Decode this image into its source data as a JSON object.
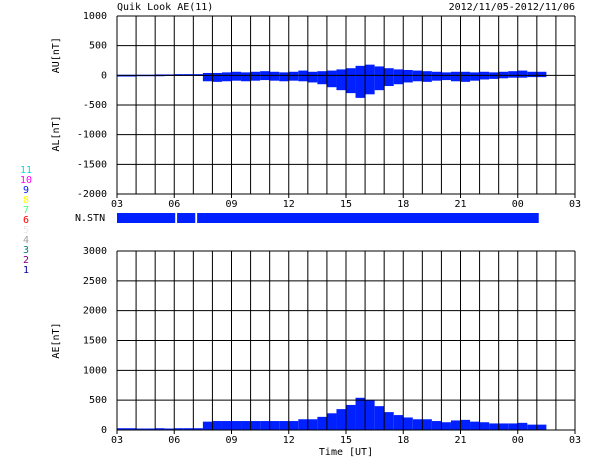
{
  "header": {
    "title": "Quik Look AE(11)",
    "date_range": "2012/11/05-2012/11/06"
  },
  "chart_data": [
    {
      "type": "area",
      "ylabels": [
        "AU[nT]",
        "AL[nT]"
      ],
      "xlim": [
        3,
        27
      ],
      "ylim": [
        -2000,
        1000
      ],
      "xticks": [
        {
          "value": 3,
          "label": "03"
        },
        {
          "value": 6,
          "label": "06"
        },
        {
          "value": 9,
          "label": "09"
        },
        12,
        15,
        18,
        21,
        {
          "value": 24,
          "label": "00"
        },
        {
          "value": 27,
          "label": "03"
        }
      ],
      "yticks": [
        1000,
        500,
        0,
        -500,
        -1000,
        -1500,
        -2000
      ],
      "xgrid": [
        3,
        4,
        5,
        6,
        7,
        8,
        9,
        10,
        11,
        12,
        13,
        14,
        15,
        16,
        17,
        18,
        19,
        20,
        21,
        22,
        23,
        24,
        25,
        26,
        27
      ],
      "x": [
        3,
        3.5,
        4,
        4.5,
        5,
        5.5,
        6,
        6.5,
        7,
        7.5,
        8,
        8.5,
        9,
        9.5,
        10,
        10.5,
        11,
        11.5,
        12,
        12.5,
        13,
        13.5,
        14,
        14.5,
        15,
        15.5,
        16,
        16.5,
        17,
        17.5,
        18,
        18.5,
        19,
        19.5,
        20,
        20.5,
        21,
        21.5,
        22,
        22.5,
        23,
        23.5,
        24,
        24.5,
        25
      ],
      "series": [
        {
          "color": "#0020ff",
          "values": [
            10,
            10,
            10,
            10,
            15,
            15,
            20,
            20,
            20,
            40,
            40,
            50,
            60,
            50,
            60,
            70,
            60,
            50,
            60,
            80,
            60,
            70,
            80,
            100,
            120,
            160,
            180,
            150,
            120,
            100,
            90,
            80,
            70,
            60,
            50,
            60,
            60,
            50,
            60,
            50,
            60,
            70,
            80,
            60,
            60
          ]
        },
        {
          "color": "#0020ff",
          "values": [
            -20,
            -20,
            -15,
            -15,
            -15,
            -10,
            -10,
            -10,
            -10,
            -100,
            -110,
            -100,
            -90,
            -100,
            -90,
            -80,
            -90,
            -100,
            -90,
            -100,
            -120,
            -150,
            -200,
            -250,
            -300,
            -380,
            -320,
            -250,
            -180,
            -150,
            -120,
            -100,
            -110,
            -90,
            -80,
            -100,
            -110,
            -90,
            -70,
            -60,
            -50,
            -40,
            -40,
            -30,
            -30
          ]
        }
      ]
    },
    {
      "type": "area",
      "ylabels": [
        "AE[nT]"
      ],
      "xlabel": "Time [UT]",
      "xlim": [
        3,
        27
      ],
      "ylim": [
        0,
        3000
      ],
      "xticks": [
        {
          "value": 3,
          "label": "03"
        },
        {
          "value": 6,
          "label": "06"
        },
        {
          "value": 9,
          "label": "09"
        },
        12,
        15,
        18,
        21,
        {
          "value": 24,
          "label": "00"
        },
        {
          "value": 27,
          "label": "03"
        }
      ],
      "yticks": [
        3000,
        2500,
        2000,
        1500,
        1000,
        500,
        0
      ],
      "xgrid": [
        3,
        4,
        5,
        6,
        7,
        8,
        9,
        10,
        11,
        12,
        13,
        14,
        15,
        16,
        17,
        18,
        19,
        20,
        21,
        22,
        23,
        24,
        25,
        26,
        27
      ],
      "x": [
        3,
        3.5,
        4,
        4.5,
        5,
        5.5,
        6,
        6.5,
        7,
        7.5,
        8,
        8.5,
        9,
        9.5,
        10,
        10.5,
        11,
        11.5,
        12,
        12.5,
        13,
        13.5,
        14,
        14.5,
        15,
        15.5,
        16,
        16.5,
        17,
        17.5,
        18,
        18.5,
        19,
        19.5,
        20,
        20.5,
        21,
        21.5,
        22,
        22.5,
        23,
        23.5,
        24,
        24.5,
        25
      ],
      "series": [
        {
          "color": "#0020ff",
          "values": [
            30,
            30,
            25,
            25,
            30,
            25,
            30,
            30,
            30,
            140,
            150,
            150,
            150,
            150,
            150,
            150,
            150,
            150,
            150,
            180,
            180,
            220,
            280,
            350,
            420,
            540,
            500,
            400,
            300,
            250,
            210,
            180,
            180,
            150,
            130,
            160,
            170,
            140,
            130,
            110,
            110,
            110,
            120,
            90,
            90
          ]
        }
      ]
    }
  ],
  "nstn": {
    "label": "N.STN",
    "segments": [
      {
        "start": 3,
        "end": 6.05,
        "value": 9
      },
      {
        "start": 6.15,
        "end": 7.1,
        "value": 9
      },
      {
        "start": 7.2,
        "end": 25.1,
        "value": 9
      }
    ]
  },
  "station_legend": [
    {
      "value": 11,
      "color": "#00e0e0"
    },
    {
      "value": 10,
      "color": "#ff00ff"
    },
    {
      "value": 9,
      "color": "#0020ff"
    },
    {
      "value": 8,
      "color": "#ffff00"
    },
    {
      "value": 7,
      "color": "#40ff80"
    },
    {
      "value": 6,
      "color": "#ff0000"
    },
    {
      "value": 5,
      "color": "#e8e8e8"
    },
    {
      "value": 4,
      "color": "#a0a0a0"
    },
    {
      "value": 3,
      "color": "#008080"
    },
    {
      "value": 2,
      "color": "#800080"
    },
    {
      "value": 1,
      "color": "#0000a0"
    }
  ]
}
